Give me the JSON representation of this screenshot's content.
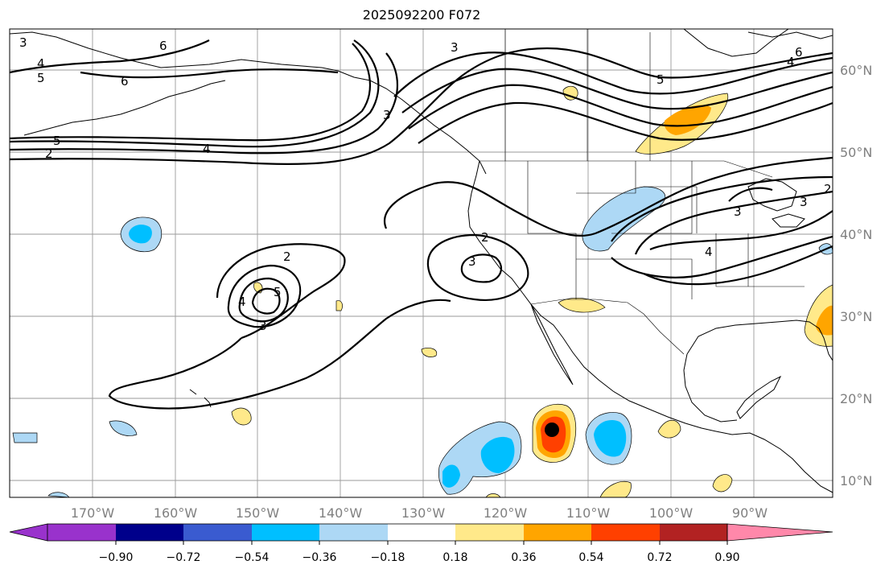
{
  "title": "2025092200 F072",
  "map": {
    "lon_labels": [
      "170°W",
      "160°W",
      "150°W",
      "140°W",
      "130°W",
      "120°W",
      "110°W",
      "100°W",
      "90°W"
    ],
    "lat_labels": [
      "60°N",
      "50°N",
      "40°N",
      "30°N",
      "20°N",
      "10°N"
    ],
    "contour_labels": [
      "3",
      "4",
      "5",
      "6",
      "5",
      "4",
      "6",
      "3",
      "5",
      "6",
      "4",
      "3",
      "2",
      "3",
      "2",
      "3",
      "5",
      "4",
      "3",
      "4",
      "3",
      "2",
      "2"
    ],
    "feature_marker": "black-dot"
  },
  "colorbar": {
    "tick_labels": [
      "−0.90",
      "−0.72",
      "−0.54",
      "−0.36",
      "−0.18",
      "0.18",
      "0.36",
      "0.54",
      "0.72",
      "0.90"
    ],
    "colors": [
      "#9932cc",
      "#00008b",
      "#3a5bd0",
      "#00bfff",
      "#add8f5",
      "#ffffff",
      "#ffe98a",
      "#ffa500",
      "#ff4000",
      "#b22222",
      "#ff88aa"
    ]
  }
}
